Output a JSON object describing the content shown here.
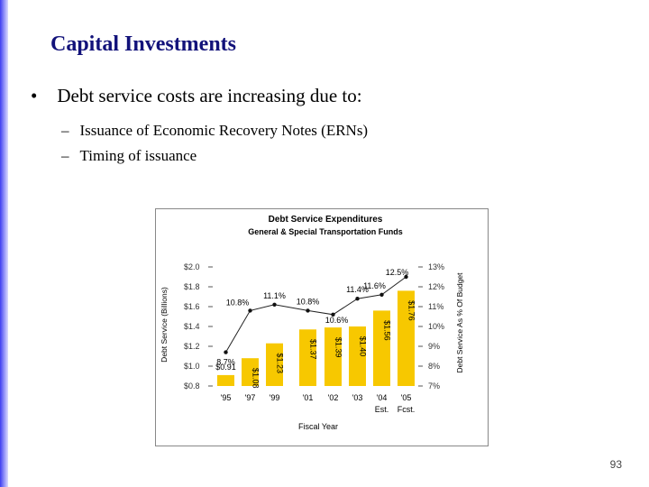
{
  "slide": {
    "title": "Capital Investments",
    "bullet": "Debt service costs are increasing due to:",
    "sub_bullets": [
      "Issuance of Economic Recovery Notes (ERNs)",
      "Timing of issuance"
    ],
    "page_number": "93",
    "accent_color": "#12127a"
  },
  "chart_data": {
    "type": "bar",
    "title": "Debt Service Expenditures",
    "subtitle": "General & Special Transportation Funds",
    "xlabel": "Fiscal Year",
    "ylabel": "Debt Service (Billions)",
    "y2label": "Debt Service As % Of Budget",
    "categories": [
      "'95",
      "'97",
      "'99",
      "'01",
      "'02",
      "'03",
      "'04",
      "'05"
    ],
    "category_notes": [
      "",
      "",
      "",
      "",
      "",
      "",
      "Est.",
      "Fcst."
    ],
    "ylim": [
      0.8,
      2.0
    ],
    "yticks": [
      "$0.8",
      "$1.0",
      "$1.2",
      "$1.4",
      "$1.6",
      "$1.8",
      "$2.0"
    ],
    "y2lim": [
      7,
      13
    ],
    "y2ticks": [
      "7%",
      "8%",
      "9%",
      "10%",
      "11%",
      "12%",
      "13%"
    ],
    "bar_color": "#f7c800",
    "series": [
      {
        "name": "Debt Service ($ Billions)",
        "values": [
          0.91,
          1.08,
          1.23,
          1.37,
          1.39,
          1.4,
          1.56,
          1.76
        ],
        "labels": [
          "$0.91",
          "$1.08",
          "$1.23",
          "$1.37",
          "$1.39",
          "$1.40",
          "$1.56",
          "$1.76"
        ]
      },
      {
        "name": "Debt Service As % Of Budget",
        "values": [
          8.7,
          10.8,
          11.1,
          10.8,
          10.6,
          11.4,
          11.6,
          12.5
        ],
        "labels": [
          "8.7%",
          "10.8%",
          "11.1%",
          "10.8%",
          "10.6%",
          "11.4%",
          "11.6%",
          "12.5%"
        ]
      }
    ]
  }
}
